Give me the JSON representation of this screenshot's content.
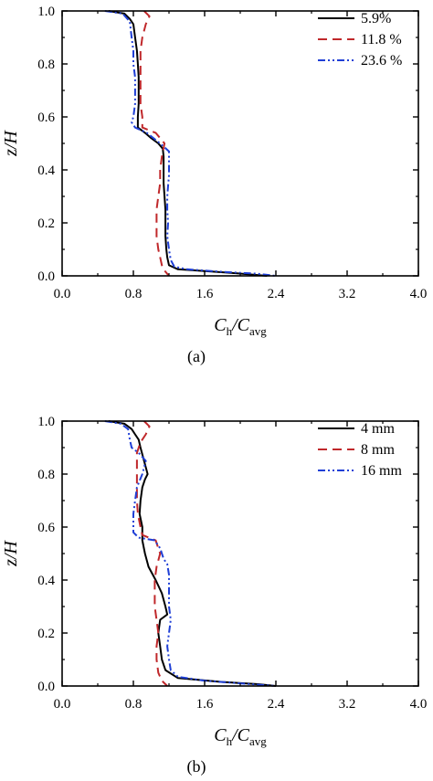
{
  "chart_data": [
    {
      "type": "line",
      "panel_label": "(a)",
      "xlabel": {
        "main": "C",
        "sub1": "h",
        "sep": "/C",
        "sub2": "avg"
      },
      "ylabel": "z/H",
      "xlim": [
        0,
        4
      ],
      "ylim": [
        0,
        1
      ],
      "xticks": [
        "0.0",
        "0.8",
        "1.6",
        "2.4",
        "3.2",
        "4.0"
      ],
      "yticks": [
        "0.0",
        "0.2",
        "0.4",
        "0.6",
        "0.8",
        "1.0"
      ],
      "legend_position": "top-right",
      "series": [
        {
          "name": "5.9%",
          "color": "#000000",
          "dash": "solid",
          "points": [
            [
              0.52,
              1.0
            ],
            [
              0.7,
              0.99
            ],
            [
              0.76,
              0.97
            ],
            [
              0.8,
              0.95
            ],
            [
              0.82,
              0.9
            ],
            [
              0.84,
              0.85
            ],
            [
              0.85,
              0.8
            ],
            [
              0.86,
              0.75
            ],
            [
              0.86,
              0.7
            ],
            [
              0.86,
              0.65
            ],
            [
              0.85,
              0.6
            ],
            [
              0.85,
              0.56
            ],
            [
              0.93,
              0.54
            ],
            [
              1.0,
              0.52
            ],
            [
              1.08,
              0.5
            ],
            [
              1.13,
              0.48
            ],
            [
              1.14,
              0.45
            ],
            [
              1.14,
              0.4
            ],
            [
              1.14,
              0.35
            ],
            [
              1.15,
              0.3
            ],
            [
              1.16,
              0.25
            ],
            [
              1.16,
              0.2
            ],
            [
              1.16,
              0.15
            ],
            [
              1.17,
              0.1
            ],
            [
              1.18,
              0.07
            ],
            [
              1.2,
              0.04
            ],
            [
              1.3,
              0.025
            ],
            [
              1.6,
              0.018
            ],
            [
              1.95,
              0.01
            ],
            [
              2.3,
              0.0
            ]
          ]
        },
        {
          "name": "11.8 %",
          "color": "#c0282b",
          "dash": "long",
          "points": [
            [
              0.92,
              1.0
            ],
            [
              0.98,
              0.98
            ],
            [
              0.94,
              0.95
            ],
            [
              0.9,
              0.9
            ],
            [
              0.88,
              0.85
            ],
            [
              0.88,
              0.8
            ],
            [
              0.88,
              0.75
            ],
            [
              0.88,
              0.7
            ],
            [
              0.88,
              0.65
            ],
            [
              0.9,
              0.6
            ],
            [
              0.9,
              0.56
            ],
            [
              1.05,
              0.54
            ],
            [
              1.15,
              0.5
            ],
            [
              1.12,
              0.45
            ],
            [
              1.1,
              0.4
            ],
            [
              1.1,
              0.35
            ],
            [
              1.08,
              0.3
            ],
            [
              1.06,
              0.25
            ],
            [
              1.06,
              0.2
            ],
            [
              1.06,
              0.15
            ],
            [
              1.08,
              0.1
            ],
            [
              1.1,
              0.07
            ],
            [
              1.12,
              0.04
            ],
            [
              1.15,
              0.02
            ],
            [
              1.2,
              0.0
            ]
          ]
        },
        {
          "name": "23.6 %",
          "color": "#1f3fd6",
          "dash": "dashdotdot",
          "points": [
            [
              0.48,
              1.0
            ],
            [
              0.68,
              0.99
            ],
            [
              0.76,
              0.96
            ],
            [
              0.78,
              0.9
            ],
            [
              0.8,
              0.85
            ],
            [
              0.8,
              0.8
            ],
            [
              0.82,
              0.75
            ],
            [
              0.82,
              0.7
            ],
            [
              0.82,
              0.65
            ],
            [
              0.8,
              0.6
            ],
            [
              0.78,
              0.58
            ],
            [
              0.82,
              0.56
            ],
            [
              0.95,
              0.54
            ],
            [
              1.1,
              0.5
            ],
            [
              1.2,
              0.47
            ],
            [
              1.2,
              0.42
            ],
            [
              1.2,
              0.38
            ],
            [
              1.19,
              0.34
            ],
            [
              1.18,
              0.3
            ],
            [
              1.18,
              0.25
            ],
            [
              1.19,
              0.2
            ],
            [
              1.18,
              0.15
            ],
            [
              1.2,
              0.1
            ],
            [
              1.22,
              0.06
            ],
            [
              1.26,
              0.035
            ],
            [
              1.4,
              0.025
            ],
            [
              1.8,
              0.015
            ],
            [
              2.2,
              0.008
            ],
            [
              2.4,
              0.0
            ]
          ]
        }
      ]
    },
    {
      "type": "line",
      "panel_label": "(b)",
      "xlabel": {
        "main": "C",
        "sub1": "h",
        "sep": "/C",
        "sub2": "avg"
      },
      "ylabel": "z/H",
      "xlim": [
        0,
        4
      ],
      "ylim": [
        0,
        1
      ],
      "xticks": [
        "0.0",
        "0.8",
        "1.6",
        "2.4",
        "3.2",
        "4.0"
      ],
      "yticks": [
        "0.0",
        "0.2",
        "0.4",
        "0.6",
        "0.8",
        "1.0"
      ],
      "legend_position": "top-right",
      "series": [
        {
          "name": "4 mm",
          "color": "#000000",
          "dash": "solid",
          "points": [
            [
              0.52,
              1.0
            ],
            [
              0.7,
              0.99
            ],
            [
              0.78,
              0.97
            ],
            [
              0.82,
              0.95
            ],
            [
              0.86,
              0.93
            ],
            [
              0.88,
              0.9
            ],
            [
              0.92,
              0.85
            ],
            [
              0.96,
              0.8
            ],
            [
              0.93,
              0.78
            ],
            [
              0.9,
              0.75
            ],
            [
              0.88,
              0.7
            ],
            [
              0.87,
              0.65
            ],
            [
              0.9,
              0.6
            ],
            [
              0.9,
              0.55
            ],
            [
              0.93,
              0.5
            ],
            [
              0.97,
              0.45
            ],
            [
              1.05,
              0.4
            ],
            [
              1.12,
              0.35
            ],
            [
              1.16,
              0.3
            ],
            [
              1.18,
              0.27
            ],
            [
              1.1,
              0.25
            ],
            [
              1.08,
              0.2
            ],
            [
              1.1,
              0.15
            ],
            [
              1.12,
              0.1
            ],
            [
              1.16,
              0.06
            ],
            [
              1.3,
              0.03
            ],
            [
              1.8,
              0.015
            ],
            [
              2.2,
              0.007
            ],
            [
              2.4,
              0.0
            ]
          ]
        },
        {
          "name": "8 mm",
          "color": "#c0282b",
          "dash": "long",
          "points": [
            [
              0.92,
              1.0
            ],
            [
              0.98,
              0.98
            ],
            [
              0.94,
              0.95
            ],
            [
              0.88,
              0.92
            ],
            [
              0.84,
              0.88
            ],
            [
              0.84,
              0.84
            ],
            [
              0.84,
              0.8
            ],
            [
              0.84,
              0.75
            ],
            [
              0.84,
              0.7
            ],
            [
              0.85,
              0.65
            ],
            [
              0.88,
              0.6
            ],
            [
              0.9,
              0.57
            ],
            [
              1.05,
              0.55
            ],
            [
              1.1,
              0.5
            ],
            [
              1.06,
              0.45
            ],
            [
              1.04,
              0.4
            ],
            [
              1.04,
              0.35
            ],
            [
              1.04,
              0.3
            ],
            [
              1.06,
              0.25
            ],
            [
              1.08,
              0.2
            ],
            [
              1.06,
              0.15
            ],
            [
              1.06,
              0.1
            ],
            [
              1.08,
              0.05
            ],
            [
              1.12,
              0.02
            ],
            [
              1.18,
              0.0
            ]
          ]
        },
        {
          "name": "16 mm",
          "color": "#1f3fd6",
          "dash": "dashdotdot",
          "points": [
            [
              0.48,
              1.0
            ],
            [
              0.66,
              0.99
            ],
            [
              0.74,
              0.97
            ],
            [
              0.76,
              0.93
            ],
            [
              0.78,
              0.9
            ],
            [
              0.86,
              0.88
            ],
            [
              0.94,
              0.85
            ],
            [
              0.9,
              0.8
            ],
            [
              0.84,
              0.75
            ],
            [
              0.82,
              0.7
            ],
            [
              0.8,
              0.65
            ],
            [
              0.8,
              0.6
            ],
            [
              0.8,
              0.58
            ],
            [
              0.86,
              0.56
            ],
            [
              1.04,
              0.55
            ],
            [
              1.1,
              0.52
            ],
            [
              1.14,
              0.48
            ],
            [
              1.18,
              0.46
            ],
            [
              1.2,
              0.42
            ],
            [
              1.2,
              0.36
            ],
            [
              1.2,
              0.3
            ],
            [
              1.22,
              0.25
            ],
            [
              1.2,
              0.2
            ],
            [
              1.18,
              0.15
            ],
            [
              1.2,
              0.1
            ],
            [
              1.22,
              0.06
            ],
            [
              1.3,
              0.035
            ],
            [
              1.6,
              0.02
            ],
            [
              2.0,
              0.01
            ],
            [
              2.4,
              0.0
            ]
          ]
        }
      ]
    }
  ]
}
